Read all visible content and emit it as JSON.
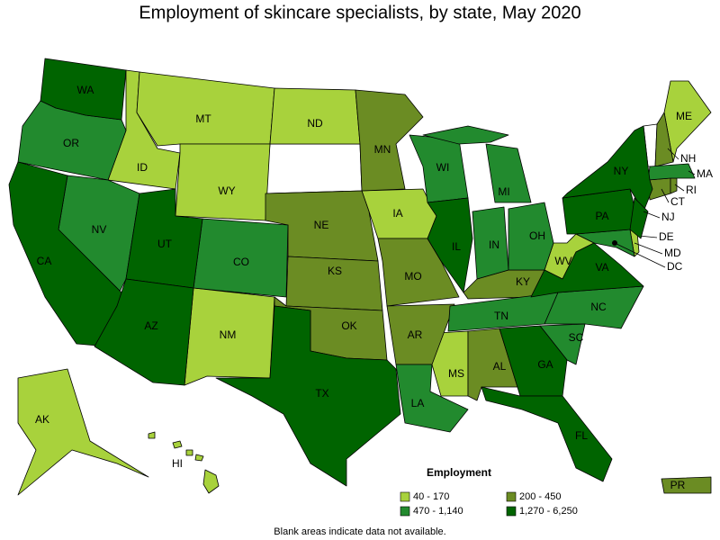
{
  "chart_data": {
    "type": "choropleth",
    "title": "Employment of skincare specialists, by state, May 2020",
    "legend": {
      "title": "Employment",
      "bins": [
        {
          "label": "40 - 170",
          "color": "#a8d23c",
          "states": [
            "AK",
            "HI",
            "ID",
            "MT",
            "WY",
            "NM",
            "ND",
            "IA",
            "MS",
            "WV",
            "ME",
            "DE"
          ]
        },
        {
          "label": "200 - 450",
          "color": "#6b8c23",
          "states": [
            "MN",
            "NE",
            "KS",
            "OK",
            "MO",
            "AR",
            "AL",
            "KY",
            "NH",
            "CT",
            "RI",
            "PR"
          ]
        },
        {
          "label": "470 - 1,140",
          "color": "#228a2e",
          "states": [
            "OR",
            "NV",
            "CO",
            "WI",
            "MI",
            "IN",
            "OH",
            "TN",
            "NC",
            "SC",
            "LA",
            "MA",
            "MD"
          ]
        },
        {
          "label": "1,270 - 6,250",
          "color": "#006400",
          "states": [
            "WA",
            "CA",
            "UT",
            "AZ",
            "TX",
            "IL",
            "GA",
            "FL",
            "VA",
            "PA",
            "NY",
            "NJ",
            "DC"
          ]
        }
      ]
    },
    "note": "Blank areas indicate data not available."
  }
}
